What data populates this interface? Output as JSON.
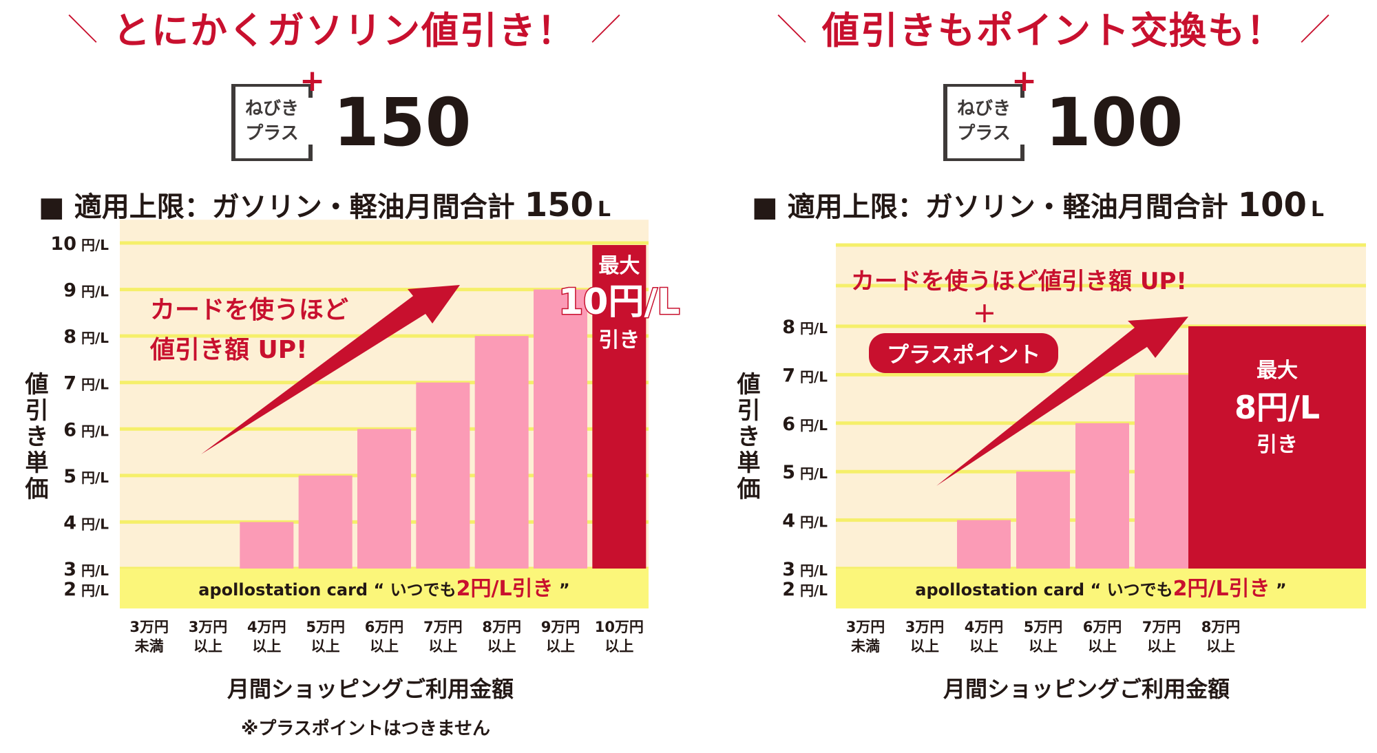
{
  "left": {
    "headline": "とにかくガソリン値引き！",
    "logo_line1": "ねびき",
    "logo_line2": "プラス",
    "logo_number": "150",
    "limit_label": "■ 適用上限：ガソリン・軽油月間合計",
    "limit_value": "150",
    "limit_unit": "L",
    "ylabel": "値引き単価",
    "xlabel": "月間ショッピングご利用金額",
    "note": "※プラスポイントはつきません",
    "arrow_text_1": "カードを使うほど",
    "arrow_text_2": "値引き額 UP!",
    "max_label_1": "最大",
    "max_label_2": "10円/L",
    "max_label_3": "引き",
    "base_band": {
      "card": "apollostation card",
      "open": "“",
      "text1": "いつでも",
      "value": "2円/L引き",
      "close": "”"
    }
  },
  "right": {
    "headline": "値引きもポイント交換も！",
    "logo_line1": "ねびき",
    "logo_line2": "プラス",
    "logo_number": "100",
    "limit_label": "■ 適用上限：ガソリン・軽油月間合計",
    "limit_value": "100",
    "limit_unit": "L",
    "ylabel": "値引き単価",
    "xlabel": "月間ショッピングご利用金額",
    "arrow_text_1": "カードを使うほど値引き額 UP!",
    "plus_sign": "＋",
    "plus_point": "プラスポイント",
    "max_label_1": "最大",
    "max_label_2": "8円/L",
    "max_label_3": "引き",
    "base_band": {
      "card": "apollostation card",
      "open": "“",
      "text1": "いつでも",
      "value": "2円/L引き",
      "close": "”"
    }
  },
  "colors": {
    "accent": "#c8102e",
    "bar_pink": "#fb9bb6",
    "band_yellow": "#fbf67a",
    "bg_cream": "#fdf0d5",
    "grid_yellow": "#f5ef6a"
  },
  "chart_data": [
    {
      "type": "bar",
      "categories": [
        "3万円未満",
        "3万円以上",
        "4万円以上",
        "5万円以上",
        "6万円以上",
        "7万円以上",
        "8万円以上",
        "9万円以上",
        "10万円以上"
      ],
      "category_lines": [
        [
          "3万円",
          "未満"
        ],
        [
          "3万円",
          "以上"
        ],
        [
          "4万円",
          "以上"
        ],
        [
          "5万円",
          "以上"
        ],
        [
          "6万円",
          "以上"
        ],
        [
          "7万円",
          "以上"
        ],
        [
          "8万円",
          "以上"
        ],
        [
          "9万円",
          "以上"
        ],
        [
          "10万円",
          "以上"
        ]
      ],
      "values": [
        2,
        3,
        4,
        5,
        6,
        7,
        8,
        9,
        10
      ],
      "ylim": [
        2,
        10
      ],
      "yticks": [
        {
          "n": "2",
          "u": "円/L"
        },
        {
          "n": "3",
          "u": "円/L"
        },
        {
          "n": "4",
          "u": "円/L"
        },
        {
          "n": "5",
          "u": "円/L"
        },
        {
          "n": "6",
          "u": "円/L"
        },
        {
          "n": "7",
          "u": "円/L"
        },
        {
          "n": "8",
          "u": "円/L"
        },
        {
          "n": "9",
          "u": "円/L"
        },
        {
          "n": "10",
          "u": "円/L"
        }
      ],
      "ylabel": "値引き単価",
      "xlabel": "月間ショッピングご利用金額",
      "grid": true
    },
    {
      "type": "bar",
      "categories": [
        "3万円未満",
        "3万円以上",
        "4万円以上",
        "5万円以上",
        "6万円以上",
        "7万円以上",
        "8万円以上"
      ],
      "category_lines": [
        [
          "3万円",
          "未満"
        ],
        [
          "3万円",
          "以上"
        ],
        [
          "4万円",
          "以上"
        ],
        [
          "5万円",
          "以上"
        ],
        [
          "6万円",
          "以上"
        ],
        [
          "7万円",
          "以上"
        ],
        [
          "8万円",
          "以上"
        ]
      ],
      "values": [
        2,
        3,
        4,
        5,
        6,
        7,
        8
      ],
      "ylim": [
        2,
        8
      ],
      "yticks": [
        {
          "n": "2",
          "u": "円/L"
        },
        {
          "n": "3",
          "u": "円/L"
        },
        {
          "n": "4",
          "u": "円/L"
        },
        {
          "n": "5",
          "u": "円/L"
        },
        {
          "n": "6",
          "u": "円/L"
        },
        {
          "n": "7",
          "u": "円/L"
        },
        {
          "n": "8",
          "u": "円/L"
        }
      ],
      "ylabel": "値引き単価",
      "xlabel": "月間ショッピングご利用金額",
      "grid": true
    }
  ]
}
